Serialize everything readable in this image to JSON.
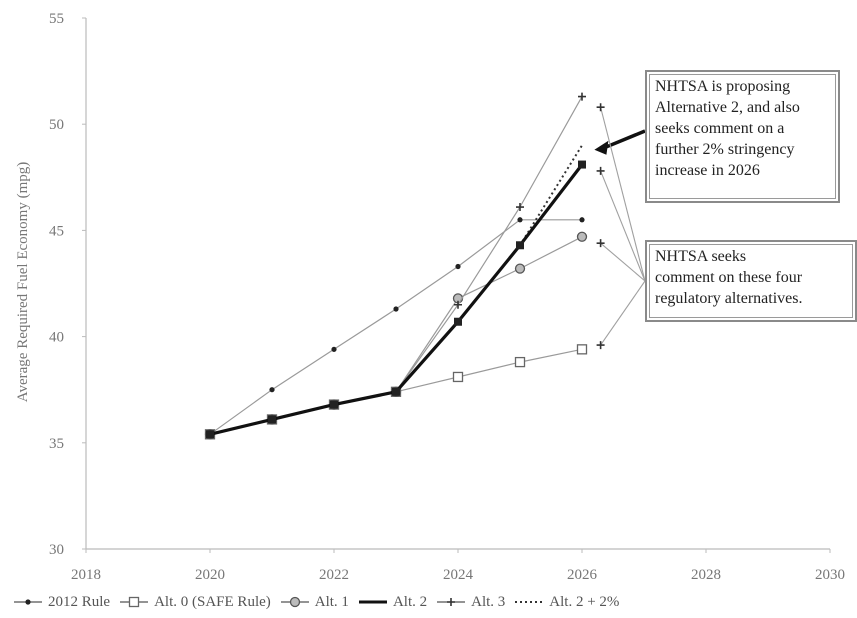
{
  "chart_data": {
    "type": "line",
    "ylabel": "Average Required Fuel Economy (mpg)",
    "xlabel": "",
    "xlim": [
      2018,
      2030
    ],
    "ylim": [
      30,
      55
    ],
    "xticks": [
      "2018",
      "2020",
      "2022",
      "2024",
      "2026",
      "2028",
      "2030"
    ],
    "yticks": [
      "30",
      "35",
      "40",
      "45",
      "50",
      "55"
    ],
    "grid": false,
    "legend_position": "bottom",
    "series": [
      {
        "name": "2012 Rule",
        "style": "thin-dot",
        "x": [
          2020,
          2021,
          2022,
          2023,
          2024,
          2025,
          2026
        ],
        "y": [
          35.4,
          37.5,
          39.4,
          41.3,
          43.3,
          45.5,
          45.5
        ]
      },
      {
        "name": "Alt. 0 (SAFE Rule)",
        "style": "thin-square",
        "x": [
          2020,
          2021,
          2022,
          2023,
          2024,
          2025,
          2026
        ],
        "y": [
          35.4,
          36.1,
          36.8,
          37.4,
          38.1,
          38.8,
          39.4
        ]
      },
      {
        "name": "Alt. 1",
        "style": "thin-circle",
        "x": [
          2020,
          2021,
          2022,
          2023,
          2024,
          2025,
          2026
        ],
        "y": [
          35.4,
          36.1,
          36.8,
          37.4,
          41.8,
          43.2,
          44.7
        ]
      },
      {
        "name": "Alt. 2",
        "style": "thick",
        "x": [
          2020,
          2021,
          2022,
          2023,
          2024,
          2025,
          2026
        ],
        "y": [
          35.4,
          36.1,
          36.8,
          37.4,
          40.7,
          44.3,
          48.1
        ]
      },
      {
        "name": "Alt. 3",
        "style": "thin-plus",
        "x": [
          2020,
          2021,
          2022,
          2023,
          2024,
          2025,
          2026
        ],
        "y": [
          35.4,
          36.1,
          36.8,
          37.4,
          41.5,
          46.1,
          51.3
        ]
      },
      {
        "name": "Alt. 2 + 2%",
        "style": "dotted",
        "x": [
          2025,
          2026
        ],
        "y": [
          44.3,
          49.0
        ]
      }
    ],
    "annotations": [
      {
        "id": "proposal",
        "text": "NHTSA is proposing\nAlternative 2, and also\nseeks comment on a\nfurther 2% stringency\nincrease in 2026"
      },
      {
        "id": "alternatives",
        "text": "NHTSA seeks\ncomment on these four\nregulatory alternatives."
      }
    ],
    "callout_targets": {
      "proposal": {
        "x": 2026.2,
        "y": 48.8
      },
      "alternatives": [
        {
          "x": 2026.3,
          "y": 50.8
        },
        {
          "x": 2026.3,
          "y": 47.8
        },
        {
          "x": 2026.3,
          "y": 44.4
        },
        {
          "x": 2026.3,
          "y": 39.6
        }
      ]
    }
  },
  "colors": {
    "line": "#9a9a9a",
    "thick_line": "#111111",
    "axis": "#bbbbbb",
    "text": "#777777",
    "box_border": "#8a8a8a"
  }
}
